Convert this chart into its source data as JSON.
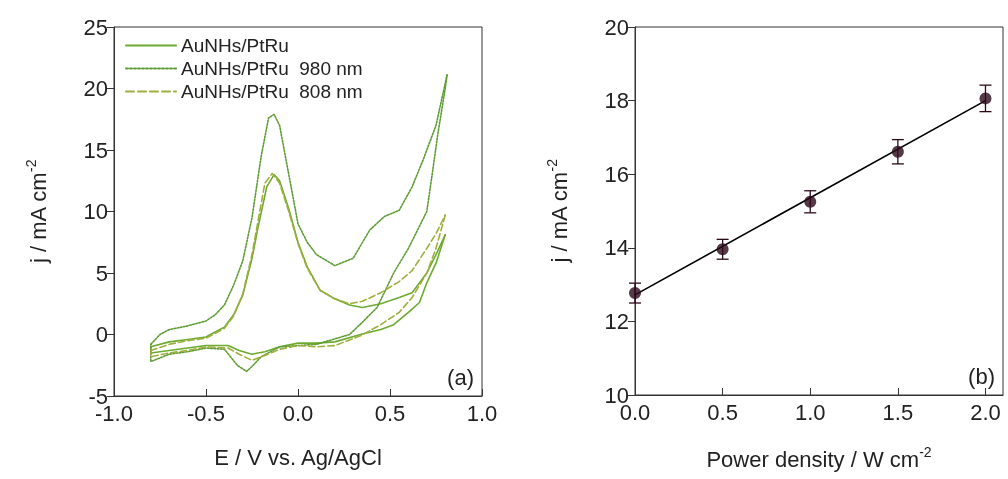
{
  "chart_data": [
    {
      "type": "line",
      "xlabel": "E / V vs. Ag/AgCl",
      "ylabel": "j / mA cm$^{-2}$",
      "xlim": [
        -1,
        1
      ],
      "ylim": [
        -5,
        25
      ],
      "xticks": [
        {
          "value": -1,
          "label": "-1.0"
        },
        {
          "value": -0.5,
          "label": "-0.5"
        },
        {
          "value": 0,
          "label": "0.0"
        },
        {
          "value": 0.5,
          "label": "0.5"
        },
        {
          "value": 1,
          "label": "1.0"
        }
      ],
      "yticks": [
        -5,
        0,
        5,
        10,
        15,
        20,
        25
      ],
      "marker": "none",
      "legend": "top left",
      "annotations": [
        "(a)"
      ],
      "series": [
        {
          "name": "AuNHs/PtRu",
          "color": "#6cab2f",
          "line_style": "solid",
          "x": [
            -0.8,
            -0.7,
            -0.6,
            -0.5,
            -0.45,
            -0.4,
            -0.35,
            -0.3,
            -0.25,
            -0.22,
            -0.17,
            -0.13,
            -0.1,
            -0.05,
            0,
            0.05,
            0.12,
            0.2,
            0.28,
            0.35,
            0.45,
            0.55,
            0.62,
            0.7,
            0.75,
            0.8
          ],
          "values": [
            -1.0,
            -0.6,
            -0.4,
            -0.2,
            0.2,
            0.6,
            1.6,
            3.2,
            6.2,
            8.5,
            12,
            13,
            12.5,
            10.2,
            7.5,
            5.5,
            3.6,
            2.9,
            2.4,
            2.2,
            2.5,
            3.0,
            3.4,
            5,
            6.5,
            8.1
          ]
        },
        {
          "color": "#6cab2f",
          "line_style": "solid",
          "x": [
            0.8,
            0.75,
            0.7,
            0.66,
            0.6,
            0.52,
            0.45,
            0.34,
            0.2,
            0.1,
            0,
            -0.1,
            -0.18,
            -0.25,
            -0.32,
            -0.38,
            -0.5,
            -0.6,
            -0.7,
            -0.8,
            -0.8
          ],
          "values": [
            8.1,
            5.8,
            4.2,
            2.6,
            1.8,
            0.8,
            0.4,
            0,
            -0.6,
            -0.7,
            -0.7,
            -1,
            -1.4,
            -1.6,
            -1.3,
            -0.9,
            -0.9,
            -1.1,
            -1.3,
            -1.5,
            -1.0
          ]
        },
        {
          "name": "AuNHs/PtRu  980 nm",
          "color": "#5e9c34",
          "line_style": "dotted",
          "x": [
            -0.8,
            -0.75,
            -0.7,
            -0.6,
            -0.5,
            -0.45,
            -0.4,
            -0.35,
            -0.3,
            -0.25,
            -0.2,
            -0.16,
            -0.13,
            -0.1,
            -0.05,
            0,
            0.05,
            0.1,
            0.2,
            0.3,
            0.39,
            0.47,
            0.55,
            0.62,
            0.68,
            0.75,
            0.81
          ],
          "values": [
            -0.8,
            0,
            0.4,
            0.7,
            1.1,
            1.6,
            2.4,
            4,
            6,
            9.5,
            14.5,
            17.6,
            17.9,
            17,
            13,
            9,
            7.5,
            6.5,
            5.6,
            6.2,
            8.5,
            9.6,
            10.1,
            12,
            14.2,
            17,
            21.1
          ]
        },
        {
          "color": "#5e9c34",
          "line_style": "dotted",
          "x": [
            0.81,
            0.8,
            0.76,
            0.73,
            0.7,
            0.6,
            0.52,
            0.43,
            0.35,
            0.28,
            0.19,
            0.1,
            0,
            -0.1,
            -0.2,
            -0.25,
            -0.28,
            -0.33,
            -0.4,
            -0.5,
            -0.6,
            -0.7,
            -0.8,
            -0.8
          ],
          "values": [
            21.1,
            20,
            16.3,
            13.1,
            10,
            7,
            5,
            2.2,
            1,
            0,
            -0.4,
            -0.8,
            -0.9,
            -1,
            -1.8,
            -2.6,
            -3.0,
            -2.5,
            -1.2,
            -1.1,
            -1.4,
            -1.6,
            -2.2,
            -0.8
          ]
        },
        {
          "name": "AuNHs/PtRu  808 nm",
          "color": "#9fae3c",
          "line_style": "dashed",
          "x": [
            -0.8,
            -0.7,
            -0.6,
            -0.5,
            -0.45,
            -0.4,
            -0.35,
            -0.3,
            -0.25,
            -0.22,
            -0.18,
            -0.14,
            -0.1,
            -0.05,
            0,
            0.05,
            0.12,
            0.2,
            0.28,
            0.35,
            0.45,
            0.55,
            0.62,
            0.7,
            0.75,
            0.8
          ],
          "values": [
            -1.3,
            -0.8,
            -0.5,
            -0.3,
            0.1,
            0.5,
            1.5,
            3.3,
            6.5,
            9,
            12.3,
            13.1,
            12.3,
            10,
            7.4,
            5.4,
            3.6,
            2.9,
            2.5,
            2.7,
            3.4,
            4.3,
            5.2,
            7,
            8.2,
            9.7
          ]
        },
        {
          "color": "#9fae3c",
          "line_style": "dashed",
          "x": [
            0.8,
            0.75,
            0.7,
            0.62,
            0.55,
            0.45,
            0.34,
            0.2,
            0.1,
            0,
            -0.1,
            -0.18,
            -0.25,
            -0.32,
            -0.38,
            -0.5,
            -0.6,
            -0.7,
            -0.8,
            -0.8
          ],
          "values": [
            9.7,
            7,
            5,
            3,
            1.8,
            0.8,
            -0.1,
            -0.9,
            -1.0,
            -0.9,
            -1.2,
            -1.7,
            -2.1,
            -1.6,
            -1.1,
            -1.0,
            -1.3,
            -1.5,
            -1.8,
            -1.3
          ]
        }
      ]
    },
    {
      "type": "scatter",
      "xlabel": "Power density / W cm$^{-2}$",
      "ylabel": "j / mA cm$^{-2}$",
      "xlim": [
        0,
        2.1
      ],
      "ylim": [
        10,
        20
      ],
      "xticks": [
        {
          "value": 0,
          "label": "0.0"
        },
        {
          "value": 0.5,
          "label": "0.5"
        },
        {
          "value": 1,
          "label": "1.0"
        },
        {
          "value": 1.5,
          "label": "1.5"
        },
        {
          "value": 2,
          "label": "2.0"
        }
      ],
      "yticks": [
        10,
        12,
        14,
        16,
        18,
        20
      ],
      "marker": "circle",
      "annotations": [
        "(b)"
      ],
      "series": [
        {
          "color": "#2a0a1a",
          "x": [
            0,
            0.5,
            1,
            1.5,
            2
          ],
          "values": [
            12.77,
            13.96,
            15.25,
            16.61,
            18.06
          ],
          "errors": [
            0.27,
            0.27,
            0.3,
            0.33,
            0.36
          ]
        },
        {
          "type": "line",
          "marker": "none",
          "color": "#000000",
          "x": [
            0,
            2
          ],
          "values": [
            12.72,
            18.0
          ]
        }
      ]
    }
  ]
}
